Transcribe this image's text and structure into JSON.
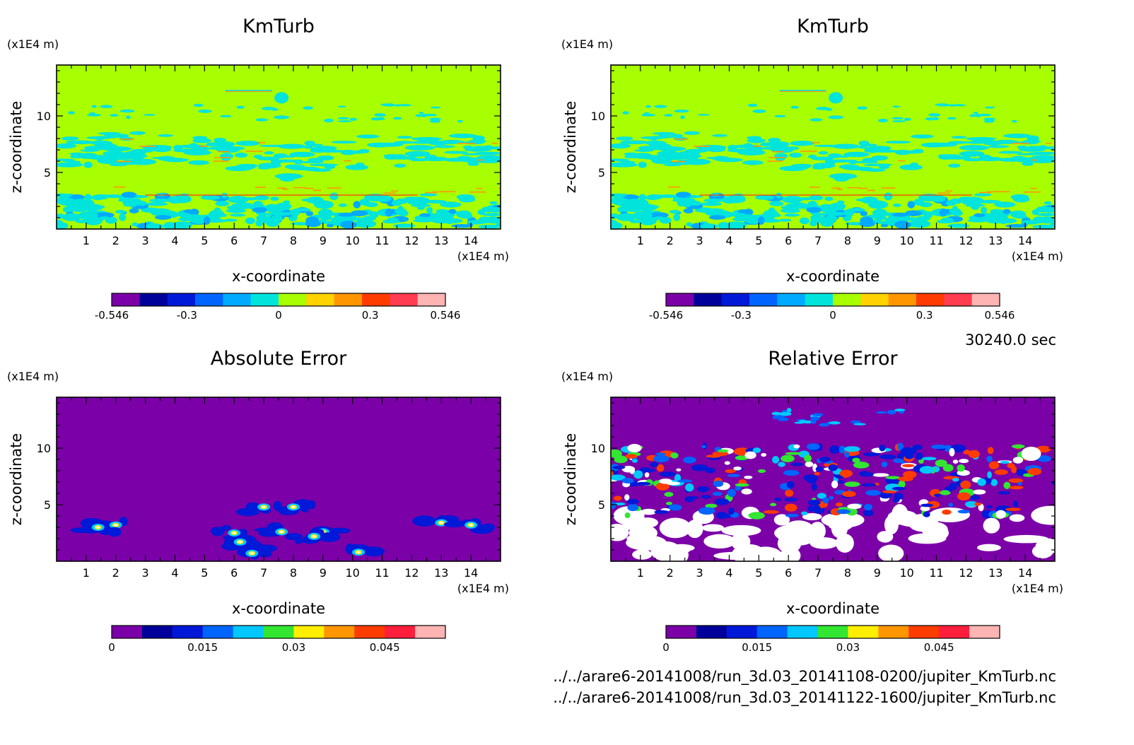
{
  "footer": {
    "time": "30240.0 sec",
    "file1": "../../arare6-20141008/run_3d.03_20141108-0200/jupiter_KmTurb.nc",
    "file2": "../../arare6-20141008/run_3d.03_20141122-1600/jupiter_KmTurb.nc"
  },
  "chart_data": [
    {
      "type": "heatmap",
      "title": "KmTurb",
      "xlabel": "x-coordinate",
      "ylabel": "z-coordinate",
      "x_unit": "(x1E4 m)",
      "y_unit": "(x1E4 m)",
      "xlim": [
        0,
        15
      ],
      "ylim": [
        0,
        14.5
      ],
      "x_ticks": [
        "1",
        "2",
        "3",
        "4",
        "5",
        "6",
        "7",
        "8",
        "9",
        "10",
        "11",
        "12",
        "13",
        "14"
      ],
      "y_ticks": [
        "5",
        "10"
      ],
      "colorbar": {
        "labels": [
          "-0.546",
          "-0.3",
          "0",
          "0.3",
          "0.546"
        ],
        "label_values": [
          -0.546,
          -0.3,
          0,
          0.3,
          0.546
        ],
        "range": [
          -0.546,
          0.546
        ],
        "colors": [
          "#7b00a8",
          "#00009a",
          "#0018d8",
          "#0064ff",
          "#00aaff",
          "#00e4dc",
          "#a8ff00",
          "#ffd200",
          "#ff9600",
          "#ff3c00",
          "#ff3c50",
          "#ffb4b4"
        ]
      }
    },
    {
      "type": "heatmap",
      "title": "KmTurb",
      "xlabel": "x-coordinate",
      "ylabel": "z-coordinate",
      "x_unit": "(x1E4 m)",
      "y_unit": "(x1E4 m)",
      "xlim": [
        0,
        15
      ],
      "ylim": [
        0,
        14.5
      ],
      "x_ticks": [
        "1",
        "2",
        "3",
        "4",
        "5",
        "6",
        "7",
        "8",
        "9",
        "10",
        "11",
        "12",
        "13",
        "14"
      ],
      "y_ticks": [
        "5",
        "10"
      ],
      "colorbar": {
        "labels": [
          "-0.546",
          "-0.3",
          "0",
          "0.3",
          "0.546"
        ],
        "label_values": [
          -0.546,
          -0.3,
          0,
          0.3,
          0.546
        ],
        "range": [
          -0.546,
          0.546
        ],
        "colors": [
          "#7b00a8",
          "#00009a",
          "#0018d8",
          "#0064ff",
          "#00aaff",
          "#00e4dc",
          "#a8ff00",
          "#ffd200",
          "#ff9600",
          "#ff3c00",
          "#ff3c50",
          "#ffb4b4"
        ]
      }
    },
    {
      "type": "heatmap",
      "title": "Absolute Error",
      "xlabel": "x-coordinate",
      "ylabel": "z-coordinate",
      "x_unit": "(x1E4 m)",
      "y_unit": "(x1E4 m)",
      "xlim": [
        0,
        15
      ],
      "ylim": [
        0,
        14.5
      ],
      "x_ticks": [
        "1",
        "2",
        "3",
        "4",
        "5",
        "6",
        "7",
        "8",
        "9",
        "10",
        "11",
        "12",
        "13",
        "14"
      ],
      "y_ticks": [
        "5",
        "10"
      ],
      "colorbar": {
        "labels": [
          "0",
          "0.015",
          "0.03",
          "0.045"
        ],
        "label_values": [
          0,
          0.015,
          0.03,
          0.045
        ],
        "range": [
          0,
          0.055
        ],
        "colors": [
          "#7b00a8",
          "#00009a",
          "#0018d8",
          "#0064ff",
          "#00c8ff",
          "#32e632",
          "#ffee00",
          "#ff9600",
          "#ff3c00",
          "#ff1e3c",
          "#ffb4b4"
        ]
      }
    },
    {
      "type": "heatmap",
      "title": "Relative Error",
      "xlabel": "x-coordinate",
      "ylabel": "z-coordinate",
      "x_unit": "(x1E4 m)",
      "y_unit": "(x1E4 m)",
      "xlim": [
        0,
        15
      ],
      "ylim": [
        0,
        14.5
      ],
      "x_ticks": [
        "1",
        "2",
        "3",
        "4",
        "5",
        "6",
        "7",
        "8",
        "9",
        "10",
        "11",
        "12",
        "13",
        "14"
      ],
      "y_ticks": [
        "5",
        "10"
      ],
      "colorbar": {
        "labels": [
          "0",
          "0.015",
          "0.03",
          "0.045"
        ],
        "label_values": [
          0,
          0.015,
          0.03,
          0.045
        ],
        "range": [
          0,
          0.055
        ],
        "colors": [
          "#7b00a8",
          "#00009a",
          "#0018d8",
          "#0064ff",
          "#00c8ff",
          "#32e632",
          "#ffee00",
          "#ff9600",
          "#ff3c00",
          "#ff1e3c",
          "#ffb4b4"
        ]
      }
    }
  ]
}
